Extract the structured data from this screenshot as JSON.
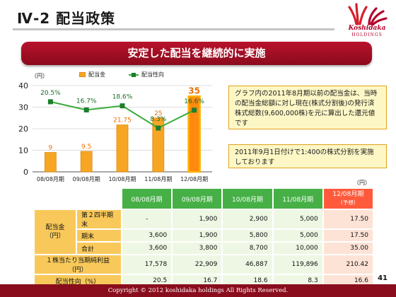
{
  "header": {
    "title": "Ⅳ-2 配当政策",
    "logo_name": "Koshidaka",
    "logo_sub": "HOLDINGS"
  },
  "banner": "安定した配当を継続的に実施",
  "chart_data": {
    "type": "bar",
    "categories": [
      "08/08月期",
      "09/08月期",
      "10/08月期",
      "11/08月期",
      "12/08月期"
    ],
    "y_unit": "（円）",
    "ylim": [
      0,
      40
    ],
    "yticks": [
      0,
      10,
      20,
      30,
      40
    ],
    "series": [
      {
        "name": "配当金",
        "type": "bar",
        "values": [
          9,
          9.5,
          21.75,
          25,
          35
        ],
        "labels": [
          "9",
          "9.5",
          "21.75",
          "25",
          "35"
        ]
      },
      {
        "name": "配当性向",
        "type": "line",
        "values": [
          20.5,
          16.7,
          18.6,
          8.3,
          16.6
        ],
        "labels": [
          "20.5%",
          "16.7%",
          "18.6%",
          "8.3%",
          "16.6%"
        ]
      }
    ],
    "highlight_index": 4,
    "colors": {
      "bar": "#f6a623",
      "bar_highlight": "#ff8a0e",
      "line": "#3aab3a",
      "marker": "#1e7d2e"
    },
    "grid": true
  },
  "notes": [
    "グラフ内の2011年8月期以前の配当金は、当時の配当金総額に対し現在(株式分割後)の発行済株式総数(9,600,000株)を元に算出した還元値です",
    "2011年9月1日付けで1:400の株式分割を実施しております"
  ],
  "table": {
    "unit": "（円）",
    "columns": [
      "08/08月期",
      "09/08月期",
      "10/08月期",
      "11/08月期"
    ],
    "forecast_column": {
      "label": "12/08月期",
      "sub": "（予想）"
    },
    "group_label": "配当金\n（円）",
    "rows": [
      {
        "label": "第２四半期末",
        "values": [
          "-",
          "1,900",
          "2,900",
          "5,000"
        ],
        "forecast": "17.50"
      },
      {
        "label": "期末",
        "values": [
          "3,600",
          "1,900",
          "5,800",
          "5,000"
        ],
        "forecast": "17.50"
      },
      {
        "label": "合計",
        "values": [
          "3,600",
          "3,800",
          "8,700",
          "10,000"
        ],
        "forecast": "35.00"
      },
      {
        "label": "１株当たり当期純利益（円）",
        "values": [
          "17,578",
          "22,909",
          "46,887",
          "119,896"
        ],
        "forecast": "210.42"
      },
      {
        "label": "配当性向（%）",
        "values": [
          "20.5",
          "16.7",
          "18.6",
          "8.3"
        ],
        "forecast": "16.6"
      }
    ]
  },
  "footer": "Copyright © 2012 koshidaka holdings All Rights Reserved.",
  "page_number": "41"
}
